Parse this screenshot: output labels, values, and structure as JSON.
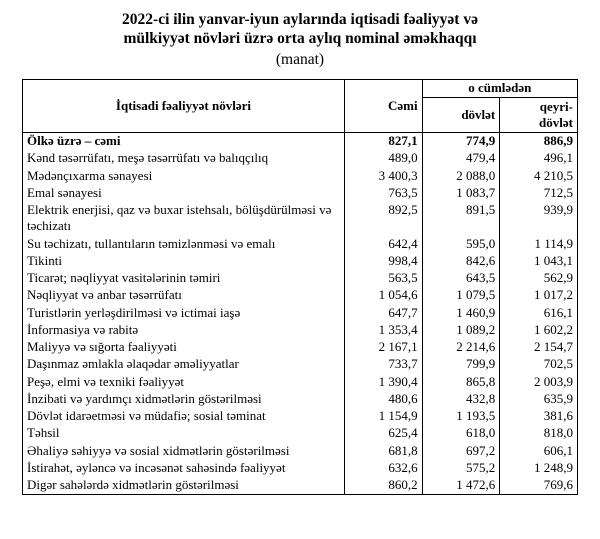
{
  "title_line1": "2022-ci ilin yanvar-iyun aylarında iqtisadi fəaliyyət və",
  "title_line2": "mülkiyyət növləri üzrə orta aylıq nominal əməkhaqqı",
  "subtitle": "(manat)",
  "table": {
    "columns": {
      "activity": "İqtisadi fəaliyyət növləri",
      "total": "Cəmi",
      "ocumleden": "o cümlədən",
      "dovlet": "dövlət",
      "qeyri": "qeyri-\ndövlət"
    },
    "rows": [
      {
        "label": "Ölkə üzrə – cəmi",
        "total": "827,1",
        "dovlet": "774,9",
        "qeyri": "886,9",
        "bold": true
      },
      {
        "label": "Kənd təsərrüfatı, meşə təsərrüfatı və balıqçılıq",
        "total": "489,0",
        "dovlet": "479,4",
        "qeyri": "496,1"
      },
      {
        "label": "Mədənçıxarma sənayesi",
        "total": "3 400,3",
        "dovlet": "2 088,0",
        "qeyri": "4 210,5"
      },
      {
        "label": "Emal sənayesi",
        "total": "763,5",
        "dovlet": "1 083,7",
        "qeyri": "712,5"
      },
      {
        "label": "Elektrik enerjisi, qaz və buxar istehsalı, bölüşdürülməsi və təchizatı",
        "total": "892,5",
        "dovlet": "891,5",
        "qeyri": "939,9"
      },
      {
        "label": "Su təchizatı, tullantıların təmizlənməsi və emalı",
        "total": "642,4",
        "dovlet": "595,0",
        "qeyri": "1 114,9"
      },
      {
        "label": "Tikinti",
        "total": "998,4",
        "dovlet": "842,6",
        "qeyri": "1 043,1"
      },
      {
        "label": "Ticarət; nəqliyyat vasitələrinin təmiri",
        "total": "563,5",
        "dovlet": "643,5",
        "qeyri": "562,9"
      },
      {
        "label": "Nəqliyyat və anbar təsərrüfatı",
        "total": "1 054,6",
        "dovlet": "1 079,5",
        "qeyri": "1 017,2"
      },
      {
        "label": "Turistlərin yerləşdirilməsi və ictimai iaşə",
        "total": "647,7",
        "dovlet": "1 460,9",
        "qeyri": "616,1"
      },
      {
        "label": "İnformasiya və rabitə",
        "total": "1 353,4",
        "dovlet": "1 089,2",
        "qeyri": "1 602,2"
      },
      {
        "label": "Maliyyə və sığorta fəaliyyəti",
        "total": "2 167,1",
        "dovlet": "2 214,6",
        "qeyri": "2 154,7"
      },
      {
        "label": "Daşınmaz əmlakla əlaqədar əməliyyatlar",
        "total": "733,7",
        "dovlet": "799,9",
        "qeyri": "702,5"
      },
      {
        "label": "Peşə, elmi və texniki fəaliyyət",
        "total": "1 390,4",
        "dovlet": "865,8",
        "qeyri": "2 003,9"
      },
      {
        "label": "İnzibati və yardımçı xidmətlərin göstərilməsi",
        "total": "480,6",
        "dovlet": "432,8",
        "qeyri": "635,9"
      },
      {
        "label": "Dövlət idarəetməsi və müdafiə; sosial təminat",
        "total": "1 154,9",
        "dovlet": "1 193,5",
        "qeyri": "381,6"
      },
      {
        "label": "Təhsil",
        "total": "625,4",
        "dovlet": "618,0",
        "qeyri": "818,0"
      },
      {
        "label": "Əhaliyə səhiyyə və sosial xidmətlərin göstərilməsi",
        "total": "681,8",
        "dovlet": "697,2",
        "qeyri": "606,1"
      },
      {
        "label": "İstirahət, əyləncə və incəsənət sahəsində fəaliyyət",
        "total": "632,6",
        "dovlet": "575,2",
        "qeyri": "1 248,9"
      },
      {
        "label": "Digər sahələrdə xidmətlərin göstərilməsi",
        "total": "860,2",
        "dovlet": "1 472,6",
        "qeyri": "769,6"
      }
    ]
  }
}
